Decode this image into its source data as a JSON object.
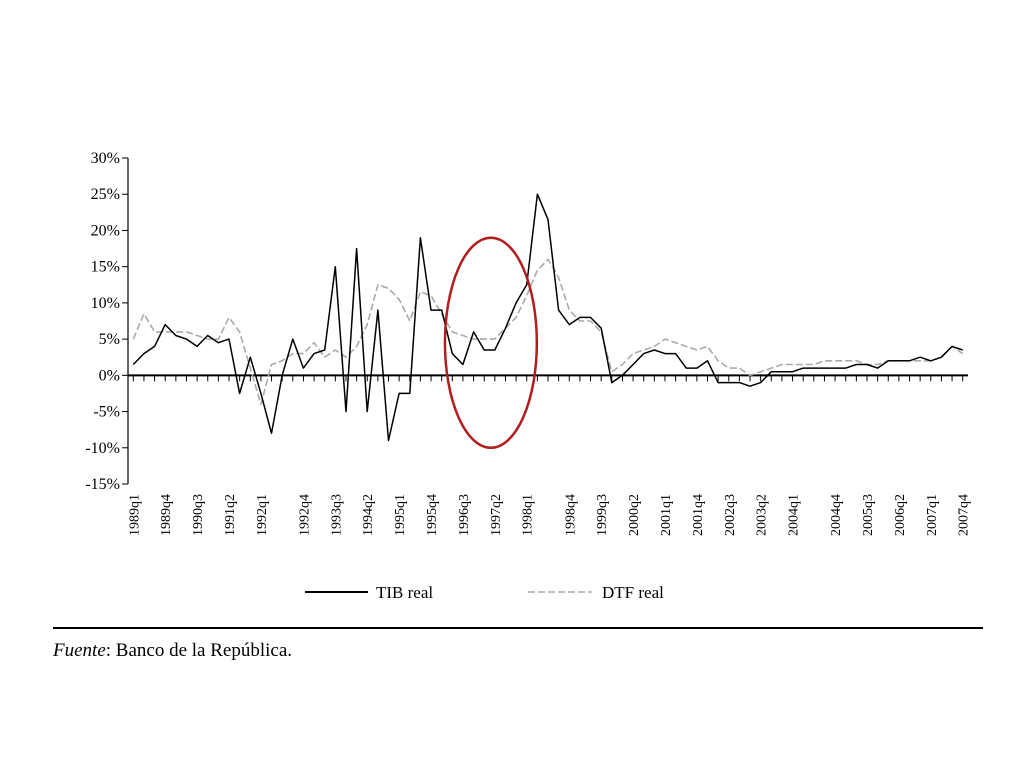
{
  "chart_data": {
    "type": "line",
    "title": "",
    "xlabel": "",
    "ylabel": "",
    "ylim": [
      -15,
      30
    ],
    "yticks": [
      30,
      25,
      20,
      15,
      10,
      5,
      0,
      -5,
      -10,
      -15
    ],
    "ytick_labels": [
      "30%",
      "25%",
      "20%",
      "15%",
      "10%",
      "5%",
      "0%",
      "-5%",
      "-10%",
      "-15%"
    ],
    "x_tick_labels": [
      "1989q1",
      "1989q4",
      "1990q3",
      "1991q2",
      "1992q1",
      "1992q4",
      "1993q3",
      "1994q2",
      "1995q1",
      "1995q4",
      "1996q3",
      "1997q2",
      "1998q1",
      "1998q4",
      "1999q3",
      "2000q2",
      "2001q1",
      "2001q4",
      "2002q3",
      "2003q2",
      "2004q1",
      "2004q4",
      "2005q3",
      "2006q2",
      "2007q1",
      "2007q4"
    ],
    "grid": false,
    "legend_position": "bottom",
    "series": [
      {
        "name": "TIB real",
        "color": "#000000",
        "dash": "solid",
        "values": [
          1.5,
          3,
          4,
          7,
          5.5,
          5,
          4,
          5.5,
          4.5,
          5,
          -2.5,
          2.5,
          -2.5,
          -8,
          0,
          5,
          1,
          3,
          3.5,
          15,
          -5,
          17.5,
          -5,
          9,
          -9,
          -2.5,
          -2.5,
          19,
          9,
          9,
          3,
          1.5,
          6,
          3.5,
          3.5,
          6.5,
          10,
          12.5,
          25,
          21.5,
          9,
          7,
          8,
          8,
          6.5,
          -1,
          0,
          1.5,
          3,
          3.5,
          3,
          3,
          1,
          1,
          2,
          -1,
          -1,
          -1,
          -1.5,
          -1,
          0.5,
          0.5,
          0.5,
          1,
          1,
          1,
          1,
          1,
          1.5,
          1.5,
          1,
          2,
          2,
          2,
          2.5,
          2,
          2.5,
          4,
          3.5
        ]
      },
      {
        "name": "DTF real",
        "color": "#aaaaaa",
        "dash": "dashed",
        "values": [
          5,
          8.5,
          6,
          6,
          6,
          6,
          5.5,
          5,
          5,
          8,
          6,
          1,
          -4,
          1.5,
          2,
          3,
          3,
          4.5,
          2.5,
          3.5,
          2.5,
          4,
          7,
          12.5,
          12,
          10.5,
          7.5,
          11.5,
          11,
          8.5,
          6,
          5.5,
          5,
          5,
          5,
          6.5,
          8,
          11,
          14.5,
          16,
          13.5,
          9,
          7.5,
          7.5,
          6,
          0.5,
          1.5,
          3,
          3.5,
          4,
          5,
          4.5,
          4,
          3.5,
          4,
          2,
          1,
          1,
          0,
          0.5,
          1,
          1.5,
          1.5,
          1.5,
          1.5,
          2,
          2,
          2,
          2,
          1.5,
          1.5,
          2,
          2,
          2,
          2,
          2,
          2.5,
          4,
          3
        ]
      }
    ],
    "annotations": [
      {
        "type": "ellipse",
        "color": "#b01e1e",
        "x_start_label": "1996q3",
        "x_end_label": "1997q2",
        "y_range": [
          -10,
          19
        ]
      }
    ]
  },
  "legend": [
    {
      "label": "TIB real"
    },
    {
      "label": "DTF real"
    }
  ],
  "source": {
    "prefix": "Fuente",
    "text": ": Banco de la República."
  }
}
